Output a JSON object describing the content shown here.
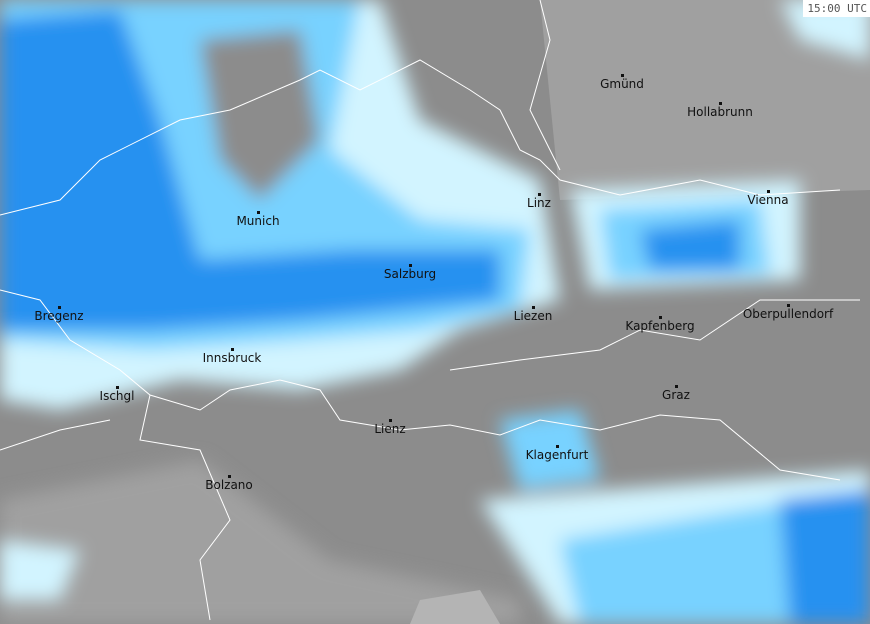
{
  "timestamp": "15:00 UTC",
  "colors": {
    "terrain": "#8c8c8c",
    "lowland": "#a0a0a0",
    "valley": "#b4b4b4",
    "precip_light": "#d2f4ff",
    "precip_moderate": "#78d2ff",
    "precip_heavy": "#2891f0",
    "precip_intense": "#1464d2",
    "borders": "#ffffff"
  },
  "cities": [
    {
      "name": "Gmünd"
    },
    {
      "name": "Hollabrunn"
    },
    {
      "name": "Linz"
    },
    {
      "name": "Vienna"
    },
    {
      "name": "Munich"
    },
    {
      "name": "Salzburg"
    },
    {
      "name": "Bregenz"
    },
    {
      "name": "Liezen"
    },
    {
      "name": "Kapfenberg"
    },
    {
      "name": "Oberpullendorf"
    },
    {
      "name": "Innsbruck"
    },
    {
      "name": "Ischgl"
    },
    {
      "name": "Graz"
    },
    {
      "name": "Lienz"
    },
    {
      "name": "Klagenfurt"
    },
    {
      "name": "Bolzano"
    }
  ]
}
